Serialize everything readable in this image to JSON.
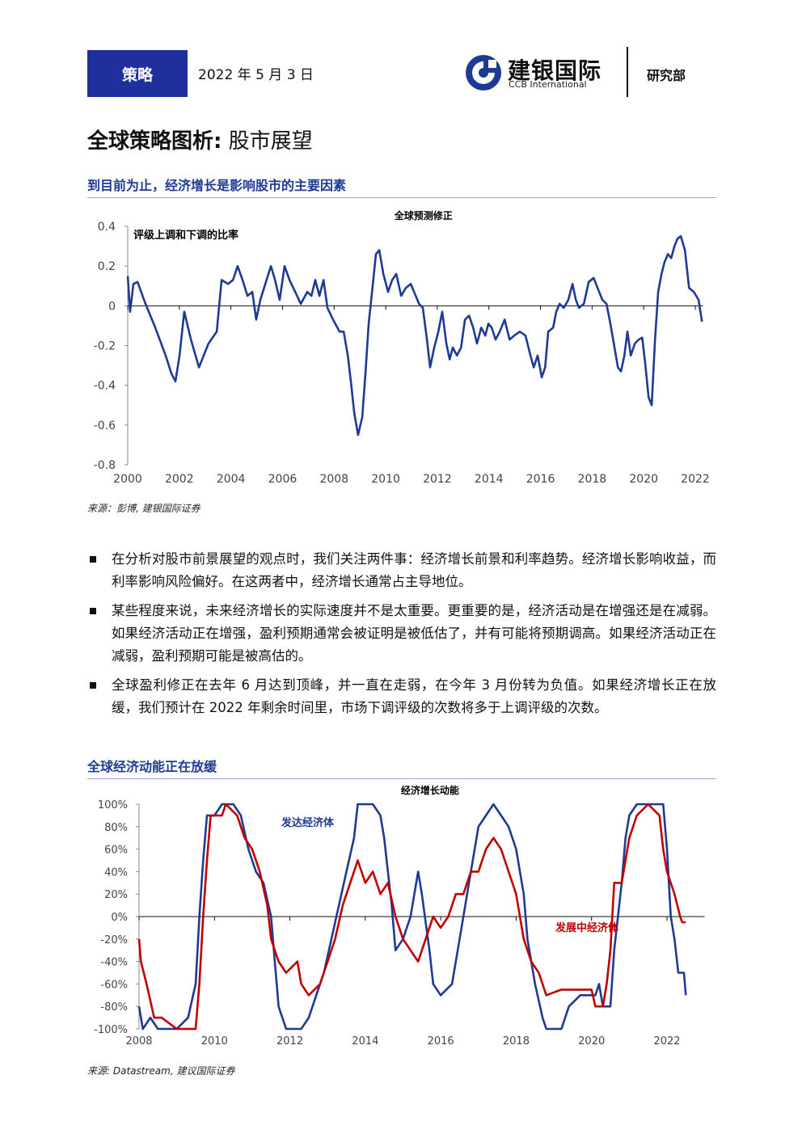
{
  "header": {
    "tag": "策略",
    "date": "2022 年 5 月 3 日",
    "logo_cn": "建银国际",
    "logo_en": "CCB International",
    "department": "研究部"
  },
  "title_main": "全球策略图析:",
  "title_sub": "股市展望",
  "section1": "到目前为止，经济增长是影响股市的主要因素",
  "source1": "来源：彭博, 建银国际证券",
  "bullets": [
    "在分析对股市前景展望的观点时，我们关注两件事：经济增长前景和利率趋势。经济增长影响收益，而利率影响风险偏好。在这两者中，经济增长通常占主导地位。",
    "某些程度来说，未来经济增长的实际速度并不是太重要。更重要的是，经济活动是在增强还是在减弱。如果经济活动正在增强，盈利预期通常会被证明是被低估了，并有可能将预期调高。如果经济活动正在减弱，盈利预期可能是被高估的。",
    "全球盈利修正在去年 6 月达到顶峰，并一直在走弱，在今年 3 月份转为负值。如果经济增长正在放缓，我们预计在 2022 年剩余时间里，市场下调评级的次数将多于上调评级的次数。"
  ],
  "section2": "全球经济动能正在放缓",
  "source2": "来源: Datastream, 建议国际证券",
  "chart_data": [
    {
      "type": "line",
      "title": "全球预测修正",
      "annotation": "评级上调和下调的比率",
      "color": "#1f3a93",
      "xlim": [
        2000,
        2022.3
      ],
      "xticks": [
        2000,
        2002,
        2004,
        2006,
        2008,
        2010,
        2012,
        2014,
        2016,
        2018,
        2020,
        2022
      ],
      "ylim": [
        -0.8,
        0.4
      ],
      "yticks": [
        0.4,
        0.2,
        0,
        -0.2,
        -0.4,
        -0.6,
        -0.8
      ],
      "x": [
        2000.0,
        2000.09,
        2000.22,
        2000.38,
        2000.69,
        2001.07,
        2001.47,
        2001.69,
        2001.85,
        2002.01,
        2002.19,
        2002.45,
        2002.76,
        2003.13,
        2003.45,
        2003.64,
        2003.89,
        2004.08,
        2004.26,
        2004.45,
        2004.64,
        2004.83,
        2004.98,
        2005.14,
        2005.55,
        2005.71,
        2005.89,
        2006.08,
        2006.27,
        2006.49,
        2006.71,
        2006.96,
        2007.12,
        2007.27,
        2007.43,
        2007.59,
        2007.74,
        2007.96,
        2008.21,
        2008.37,
        2008.53,
        2008.65,
        2008.78,
        2008.93,
        2009.09,
        2009.22,
        2009.34,
        2009.47,
        2009.62,
        2009.75,
        2009.91,
        2010.09,
        2010.25,
        2010.41,
        2010.6,
        2010.78,
        2010.97,
        2011.1,
        2011.29,
        2011.44,
        2011.6,
        2011.72,
        2011.88,
        2012.04,
        2012.19,
        2012.35,
        2012.48,
        2012.6,
        2012.76,
        2012.92,
        2013.07,
        2013.23,
        2013.39,
        2013.54,
        2013.7,
        2013.86,
        2013.98,
        2014.11,
        2014.26,
        2014.42,
        2014.61,
        2014.8,
        2014.98,
        2015.2,
        2015.42,
        2015.61,
        2015.74,
        2015.89,
        2016.05,
        2016.18,
        2016.3,
        2016.49,
        2016.61,
        2016.74,
        2016.9,
        2017.08,
        2017.24,
        2017.37,
        2017.49,
        2017.68,
        2017.87,
        2018.06,
        2018.21,
        2018.4,
        2018.56,
        2018.71,
        2018.87,
        2019.0,
        2019.12,
        2019.25,
        2019.37,
        2019.5,
        2019.66,
        2019.81,
        2019.94,
        2020.06,
        2020.19,
        2020.31,
        2020.44,
        2020.56,
        2020.69,
        2020.81,
        2020.94,
        2021.07,
        2021.19,
        2021.32,
        2021.44,
        2021.6,
        2021.76,
        2021.94,
        2022.13,
        2022.26
      ],
      "values": [
        0.15,
        -0.03,
        0.11,
        0.12,
        0.01,
        -0.11,
        -0.25,
        -0.34,
        -0.38,
        -0.25,
        -0.03,
        -0.17,
        -0.31,
        -0.19,
        -0.13,
        0.13,
        0.11,
        0.13,
        0.2,
        0.13,
        0.05,
        0.07,
        -0.07,
        0.03,
        0.2,
        0.13,
        0.03,
        0.2,
        0.13,
        0.07,
        0.01,
        0.07,
        0.05,
        0.13,
        0.05,
        0.13,
        -0.01,
        -0.07,
        -0.13,
        -0.13,
        -0.25,
        -0.38,
        -0.54,
        -0.65,
        -0.56,
        -0.33,
        -0.09,
        0.07,
        0.26,
        0.28,
        0.16,
        0.07,
        0.13,
        0.16,
        0.05,
        0.09,
        0.11,
        0.07,
        0.01,
        -0.01,
        -0.17,
        -0.31,
        -0.21,
        -0.13,
        -0.03,
        -0.19,
        -0.27,
        -0.21,
        -0.25,
        -0.21,
        -0.07,
        -0.05,
        -0.11,
        -0.19,
        -0.11,
        -0.15,
        -0.09,
        -0.11,
        -0.17,
        -0.13,
        -0.07,
        -0.17,
        -0.15,
        -0.13,
        -0.15,
        -0.25,
        -0.31,
        -0.25,
        -0.36,
        -0.31,
        -0.13,
        -0.11,
        -0.03,
        0.01,
        -0.01,
        0.03,
        0.11,
        0.03,
        -0.01,
        0.01,
        0.12,
        0.14,
        0.09,
        0.03,
        0.01,
        -0.09,
        -0.21,
        -0.31,
        -0.33,
        -0.25,
        -0.13,
        -0.25,
        -0.19,
        -0.17,
        -0.16,
        -0.29,
        -0.46,
        -0.5,
        -0.17,
        0.07,
        0.16,
        0.22,
        0.26,
        0.24,
        0.3,
        0.34,
        0.35,
        0.28,
        0.09,
        0.07,
        0.03,
        -0.08
      ]
    },
    {
      "type": "line",
      "title": "经济增长动能",
      "xlim": [
        2008,
        2023
      ],
      "xticks": [
        2008,
        2010,
        2012,
        2014,
        2016,
        2018,
        2020,
        2022
      ],
      "ylim": [
        -100,
        100
      ],
      "yticks": [
        {
          "value": 100,
          "label": "100%"
        },
        {
          "value": 80,
          "label": "80%"
        },
        {
          "value": 60,
          "label": "60%"
        },
        {
          "value": 40,
          "label": "40%"
        },
        {
          "value": 20,
          "label": "20%"
        },
        {
          "value": 0,
          "label": "0%"
        },
        {
          "value": -20,
          "label": "-20%"
        },
        {
          "value": -40,
          "label": "-40%"
        },
        {
          "value": -60,
          "label": "-60%"
        },
        {
          "value": -80,
          "label": "-80%"
        },
        {
          "value": -100,
          "label": "-100%"
        }
      ],
      "series": [
        {
          "name": "发达经济体",
          "color": "#1f3a93",
          "x": [
            2008.0,
            2008.1,
            2008.3,
            2008.5,
            2009.0,
            2009.3,
            2009.5,
            2009.6,
            2009.7,
            2009.8,
            2010.0,
            2010.2,
            2010.5,
            2010.7,
            2010.9,
            2011.1,
            2011.3,
            2011.5,
            2011.6,
            2011.7,
            2011.9,
            2012.3,
            2012.5,
            2012.7,
            2012.9,
            2013.1,
            2013.3,
            2013.5,
            2013.7,
            2013.8,
            2014.2,
            2014.4,
            2014.5,
            2014.6,
            2014.7,
            2014.8,
            2015.0,
            2015.2,
            2015.4,
            2015.5,
            2015.7,
            2015.8,
            2016.0,
            2016.3,
            2016.5,
            2016.7,
            2016.9,
            2017.0,
            2017.2,
            2017.4,
            2017.6,
            2017.8,
            2018.0,
            2018.2,
            2018.3,
            2018.5,
            2018.7,
            2018.8,
            2019.2,
            2019.4,
            2019.7,
            2020.1,
            2020.2,
            2020.3,
            2020.5,
            2020.6,
            2020.8,
            2020.9,
            2021.0,
            2021.2,
            2021.5,
            2021.9,
            2022.0,
            2022.1,
            2022.2,
            2022.3,
            2022.45,
            2022.5
          ],
          "values": [
            -80,
            -100,
            -90,
            -100,
            -100,
            -90,
            -60,
            0,
            50,
            90,
            90,
            100,
            100,
            90,
            60,
            40,
            30,
            0,
            -40,
            -80,
            -100,
            -100,
            -90,
            -70,
            -50,
            -20,
            10,
            40,
            70,
            100,
            100,
            90,
            70,
            40,
            10,
            -30,
            -20,
            0,
            40,
            20,
            -30,
            -60,
            -70,
            -60,
            -20,
            20,
            60,
            80,
            90,
            100,
            90,
            80,
            60,
            20,
            -20,
            -60,
            -90,
            -100,
            -100,
            -80,
            -70,
            -70,
            -60,
            -80,
            -80,
            -30,
            30,
            70,
            90,
            100,
            100,
            100,
            60,
            0,
            -20,
            -50,
            -50,
            -70
          ]
        },
        {
          "name": "发展中经济体",
          "color": "#c00000",
          "x": [
            2008.0,
            2008.05,
            2008.2,
            2008.4,
            2008.6,
            2009.0,
            2009.5,
            2009.6,
            2009.7,
            2009.8,
            2009.9,
            2010.2,
            2010.3,
            2010.6,
            2010.8,
            2011.0,
            2011.2,
            2011.4,
            2011.5,
            2011.7,
            2011.9,
            2012.2,
            2012.3,
            2012.5,
            2012.8,
            2013.0,
            2013.2,
            2013.4,
            2013.6,
            2013.8,
            2014.0,
            2014.2,
            2014.4,
            2014.6,
            2014.8,
            2015.0,
            2015.2,
            2015.4,
            2015.6,
            2015.8,
            2016.0,
            2016.2,
            2016.4,
            2016.6,
            2016.8,
            2017.0,
            2017.2,
            2017.4,
            2017.6,
            2017.8,
            2018.0,
            2018.2,
            2018.4,
            2018.6,
            2018.8,
            2019.2,
            2019.6,
            2020.0,
            2020.1,
            2020.3,
            2020.4,
            2020.5,
            2020.6,
            2020.8,
            2021.0,
            2021.2,
            2021.5,
            2021.8,
            2021.9,
            2022.0,
            2022.2,
            2022.35,
            2022.4,
            2022.5
          ],
          "values": [
            -20,
            -40,
            -60,
            -90,
            -90,
            -100,
            -100,
            -60,
            0,
            50,
            90,
            90,
            100,
            90,
            70,
            60,
            40,
            10,
            -20,
            -40,
            -50,
            -40,
            -60,
            -70,
            -60,
            -40,
            -20,
            10,
            30,
            50,
            30,
            40,
            20,
            30,
            0,
            -20,
            -30,
            -40,
            -20,
            0,
            -10,
            0,
            20,
            20,
            40,
            40,
            60,
            70,
            60,
            40,
            20,
            -20,
            -40,
            -50,
            -70,
            -65,
            -65,
            -65,
            -80,
            -80,
            -60,
            -30,
            30,
            30,
            70,
            90,
            100,
            90,
            60,
            40,
            20,
            0,
            -5,
            -5
          ]
        }
      ]
    }
  ]
}
